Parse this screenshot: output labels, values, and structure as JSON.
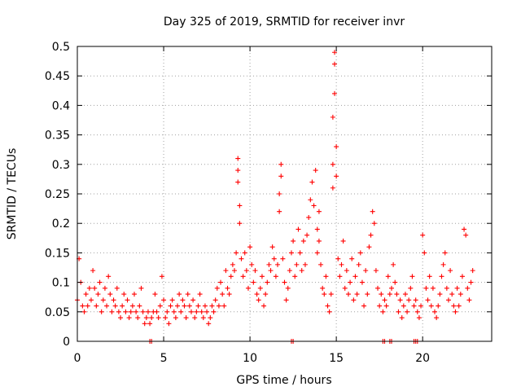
{
  "chart_data": {
    "type": "scatter",
    "title": "Day 325 of 2019, SRMTID for receiver invr",
    "xlabel": "GPS time / hours",
    "ylabel": "SRMTID / TECUs",
    "xlim": [
      0,
      24
    ],
    "ylim": [
      0,
      0.5
    ],
    "xticks": [
      0,
      5,
      10,
      15,
      20
    ],
    "xtick_labels": [
      "0",
      "5",
      "10",
      "15",
      "20"
    ],
    "yticks": [
      0,
      0.05,
      0.1,
      0.15,
      0.2,
      0.25,
      0.3,
      0.35,
      0.4,
      0.45,
      0.5
    ],
    "ytick_labels": [
      "0",
      "0.05",
      "0.1",
      "0.15",
      "0.2",
      "0.25",
      "0.3",
      "0.35",
      "0.4",
      "0.45",
      "0.5"
    ],
    "grid": true,
    "marker": "+",
    "color": "#ff0000",
    "series": [
      {
        "name": "SRMTID",
        "x": [
          0.0,
          0.1,
          0.2,
          0.3,
          0.4,
          0.5,
          0.6,
          0.7,
          0.8,
          0.9,
          1.0,
          1.1,
          1.2,
          1.3,
          1.4,
          1.5,
          1.6,
          1.7,
          1.8,
          1.9,
          2.0,
          2.1,
          2.2,
          2.3,
          2.4,
          2.5,
          2.6,
          2.7,
          2.8,
          2.9,
          3.0,
          3.1,
          3.2,
          3.3,
          3.4,
          3.5,
          3.6,
          3.7,
          3.8,
          3.9,
          4.0,
          4.1,
          4.2,
          4.3,
          4.4,
          4.5,
          4.6,
          4.7,
          4.8,
          4.9,
          5.0,
          5.1,
          5.2,
          5.3,
          5.4,
          5.5,
          5.6,
          5.7,
          5.8,
          5.9,
          6.0,
          6.1,
          6.2,
          6.3,
          6.4,
          6.5,
          6.6,
          6.7,
          6.8,
          6.9,
          7.0,
          7.1,
          7.2,
          7.3,
          7.4,
          7.5,
          7.6,
          7.7,
          7.8,
          7.9,
          8.0,
          8.1,
          8.2,
          8.3,
          8.4,
          8.5,
          8.6,
          8.7,
          8.8,
          8.9,
          9.0,
          9.1,
          9.2,
          9.3,
          9.3,
          9.3,
          9.4,
          9.4,
          9.5,
          9.6,
          9.7,
          9.8,
          9.9,
          10.0,
          10.1,
          10.2,
          10.3,
          10.4,
          10.5,
          10.6,
          10.7,
          10.8,
          10.9,
          11.0,
          11.1,
          11.2,
          11.3,
          11.4,
          11.5,
          11.6,
          11.7,
          11.7,
          11.8,
          11.8,
          11.9,
          12.0,
          12.1,
          12.2,
          12.3,
          12.4,
          12.5,
          12.6,
          12.7,
          12.8,
          12.9,
          13.0,
          13.1,
          13.2,
          13.3,
          13.4,
          13.5,
          13.6,
          13.7,
          13.8,
          13.9,
          13.9,
          14.0,
          14.0,
          14.1,
          14.2,
          14.3,
          14.4,
          14.5,
          14.6,
          14.7,
          14.8,
          14.8,
          14.8,
          14.9,
          14.9,
          14.9,
          15.0,
          15.0,
          15.1,
          15.2,
          15.3,
          15.4,
          15.5,
          15.6,
          15.7,
          15.8,
          15.9,
          16.0,
          16.1,
          16.2,
          16.3,
          16.4,
          16.5,
          16.6,
          16.7,
          16.8,
          16.9,
          17.0,
          17.1,
          17.2,
          17.3,
          17.4,
          17.5,
          17.6,
          17.7,
          17.8,
          17.9,
          18.0,
          18.1,
          18.2,
          18.3,
          18.4,
          18.5,
          18.6,
          18.7,
          18.8,
          18.9,
          19.0,
          19.1,
          19.2,
          19.3,
          19.4,
          19.5,
          19.6,
          19.7,
          19.8,
          19.9,
          20.0,
          20.1,
          20.2,
          20.3,
          20.4,
          20.5,
          20.6,
          20.7,
          20.8,
          20.9,
          21.0,
          21.1,
          21.2,
          21.3,
          21.4,
          21.5,
          21.6,
          21.7,
          21.8,
          21.9,
          22.0,
          22.1,
          22.2,
          22.3,
          22.4,
          22.5,
          22.6,
          22.7,
          22.8,
          22.9,
          4.2,
          4.3,
          12.4,
          12.5,
          17.7,
          17.8,
          18.1,
          18.2,
          19.5,
          19.6,
          19.7
        ],
        "y": [
          0.07,
          0.14,
          0.1,
          0.06,
          0.05,
          0.08,
          0.06,
          0.09,
          0.07,
          0.12,
          0.09,
          0.06,
          0.08,
          0.1,
          0.05,
          0.07,
          0.09,
          0.06,
          0.11,
          0.08,
          0.05,
          0.07,
          0.06,
          0.09,
          0.05,
          0.04,
          0.06,
          0.08,
          0.05,
          0.07,
          0.04,
          0.05,
          0.06,
          0.08,
          0.05,
          0.04,
          0.06,
          0.09,
          0.05,
          0.03,
          0.04,
          0.05,
          0.03,
          0.04,
          0.05,
          0.08,
          0.05,
          0.04,
          0.06,
          0.11,
          0.07,
          0.04,
          0.05,
          0.03,
          0.06,
          0.07,
          0.05,
          0.04,
          0.06,
          0.08,
          0.05,
          0.07,
          0.06,
          0.04,
          0.08,
          0.06,
          0.05,
          0.07,
          0.04,
          0.05,
          0.06,
          0.08,
          0.05,
          0.04,
          0.06,
          0.05,
          0.03,
          0.04,
          0.06,
          0.05,
          0.07,
          0.09,
          0.06,
          0.1,
          0.08,
          0.06,
          0.12,
          0.09,
          0.08,
          0.11,
          0.13,
          0.12,
          0.15,
          0.29,
          0.31,
          0.27,
          0.2,
          0.23,
          0.14,
          0.11,
          0.15,
          0.12,
          0.09,
          0.16,
          0.13,
          0.1,
          0.12,
          0.08,
          0.07,
          0.09,
          0.11,
          0.06,
          0.08,
          0.1,
          0.13,
          0.12,
          0.16,
          0.14,
          0.11,
          0.13,
          0.22,
          0.25,
          0.28,
          0.3,
          0.14,
          0.1,
          0.07,
          0.09,
          0.12,
          0.15,
          0.17,
          0.11,
          0.13,
          0.19,
          0.15,
          0.12,
          0.17,
          0.13,
          0.18,
          0.21,
          0.24,
          0.27,
          0.23,
          0.29,
          0.19,
          0.15,
          0.22,
          0.17,
          0.13,
          0.09,
          0.08,
          0.11,
          0.06,
          0.05,
          0.08,
          0.26,
          0.3,
          0.38,
          0.42,
          0.47,
          0.49,
          0.33,
          0.28,
          0.14,
          0.11,
          0.13,
          0.17,
          0.09,
          0.12,
          0.08,
          0.1,
          0.14,
          0.07,
          0.11,
          0.08,
          0.13,
          0.15,
          0.1,
          0.06,
          0.12,
          0.08,
          0.16,
          0.18,
          0.22,
          0.2,
          0.12,
          0.09,
          0.06,
          0.08,
          0.05,
          0.07,
          0.06,
          0.11,
          0.08,
          0.09,
          0.13,
          0.1,
          0.08,
          0.05,
          0.07,
          0.04,
          0.06,
          0.08,
          0.05,
          0.07,
          0.09,
          0.11,
          0.06,
          0.07,
          0.05,
          0.04,
          0.06,
          0.18,
          0.15,
          0.09,
          0.07,
          0.11,
          0.06,
          0.09,
          0.05,
          0.04,
          0.06,
          0.08,
          0.11,
          0.13,
          0.15,
          0.09,
          0.07,
          0.12,
          0.08,
          0.06,
          0.05,
          0.09,
          0.06,
          0.08,
          0.11,
          0.19,
          0.18,
          0.09,
          0.07,
          0.1,
          0.12,
          0.0,
          0.0,
          0.0,
          0.0,
          0.0,
          0.0,
          0.0,
          0.0,
          0.0,
          0.0,
          0.0
        ]
      }
    ]
  }
}
